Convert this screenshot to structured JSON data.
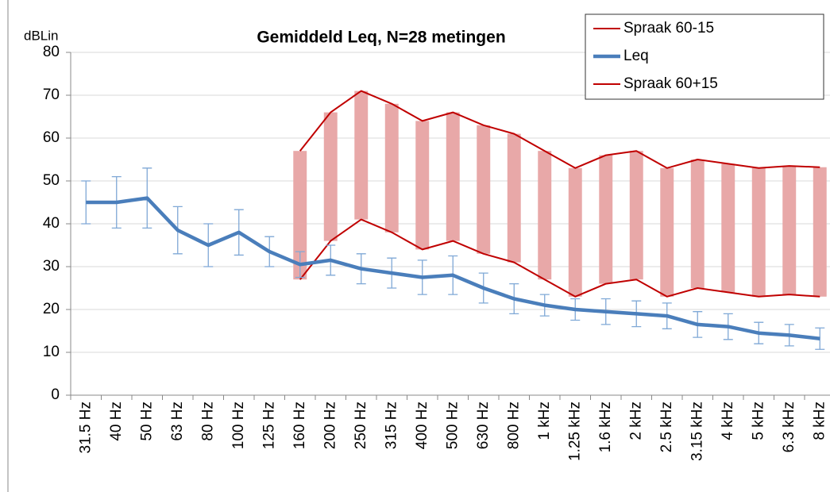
{
  "chart_data": {
    "type": "line",
    "title": "Gemiddeld  Leq, N=28 metingen",
    "y_label": "dBLin",
    "categories": [
      "31.5 Hz",
      "40 Hz",
      "50 Hz",
      "63 Hz",
      "80 Hz",
      "100 Hz",
      "125 Hz",
      "160 Hz",
      "200 Hz",
      "250 Hz",
      "315 Hz",
      "400 Hz",
      "500 Hz",
      "630 Hz",
      "800 Hz",
      "1 kHz",
      "1.25 kHz",
      "1.6 kHz",
      "2 kHz",
      "2.5 kHz",
      "3.15 kHz",
      "4 kHz",
      "5 kHz",
      "6.3 kHz",
      "8 kHz"
    ],
    "series": [
      {
        "name": "Spraak 60-15",
        "color": "#c00000",
        "values": [
          null,
          null,
          null,
          null,
          null,
          null,
          null,
          27,
          36,
          41,
          38,
          34,
          36,
          33,
          31,
          27,
          23,
          26,
          27,
          23,
          25,
          24,
          23,
          23.5,
          23
        ]
      },
      {
        "name": "Leq",
        "color": "#4a7ebb",
        "values": [
          45,
          45,
          46,
          38.5,
          35,
          38,
          33.5,
          30.5,
          31.5,
          29.5,
          28.5,
          27.5,
          28,
          25,
          22.5,
          21,
          20,
          19.5,
          19,
          18.5,
          16.5,
          16,
          14.5,
          14,
          13.2
        ],
        "errors": [
          5,
          6,
          7,
          5.5,
          5,
          5.3,
          3.5,
          3,
          3.5,
          3.5,
          3.5,
          4,
          4.5,
          3.5,
          3.5,
          2.5,
          2.5,
          3,
          3,
          3,
          3,
          3,
          2.5,
          2.5,
          2.5
        ],
        "error_color": "#7fa8d6"
      },
      {
        "name": "Spraak 60+15",
        "color": "#c00000",
        "values": [
          null,
          null,
          null,
          null,
          null,
          null,
          null,
          57,
          66,
          71,
          68,
          64,
          66,
          63,
          61,
          57,
          53,
          56,
          57,
          53,
          55,
          54,
          53,
          53.5,
          53.2
        ]
      }
    ],
    "band_color": "#e8a8a8",
    "ylim": [
      0,
      80
    ],
    "yticks": [
      0,
      10,
      20,
      30,
      40,
      50,
      60,
      70,
      80
    ],
    "grid": true,
    "legend": "top-right"
  }
}
